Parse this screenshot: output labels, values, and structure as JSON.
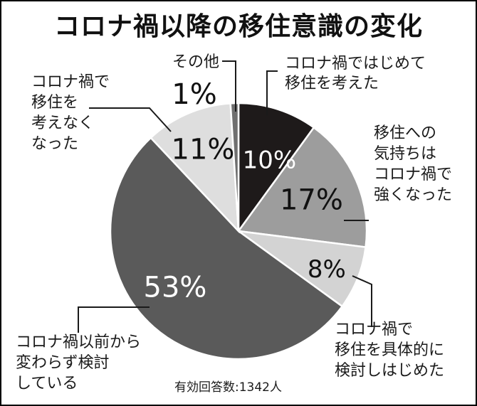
{
  "chart_data": {
    "type": "pie",
    "title": "コロナ禍以降の移住意識の変化",
    "slices": [
      {
        "label_lines": [
          "コロナ禍ではじめて",
          "移住を考えた"
        ],
        "value": 10,
        "value_label": "10%",
        "color": "#1e1a1a",
        "text_color": "#ffffff"
      },
      {
        "label_lines": [
          "移住への",
          "気持ちは",
          "コロナ禍で",
          "強くなった"
        ],
        "value": 17,
        "value_label": "17%",
        "color": "#9d9d9d",
        "text_color": "#111111"
      },
      {
        "label_lines": [
          "コロナ禍で",
          "移住を具体的に",
          "検討しはじめた"
        ],
        "value": 8,
        "value_label": "8%",
        "color": "#d3d3d3",
        "text_color": "#111111"
      },
      {
        "label_lines": [
          "コロナ禍以前から",
          "変わらず検討",
          "している"
        ],
        "value": 53,
        "value_label": "53%",
        "color": "#5a5a5a",
        "text_color": "#ffffff"
      },
      {
        "label_lines": [
          "コロナ禍で",
          "移住を",
          "考えなく",
          "なった"
        ],
        "value": 11,
        "value_label": "11%",
        "color": "#dedede",
        "text_color": "#111111"
      },
      {
        "label_lines": [
          "その他"
        ],
        "value": 1,
        "value_label": "1%",
        "color": "#6f6f6f",
        "text_color": "#111111"
      }
    ],
    "footnote": "有効回答数:1342人"
  }
}
